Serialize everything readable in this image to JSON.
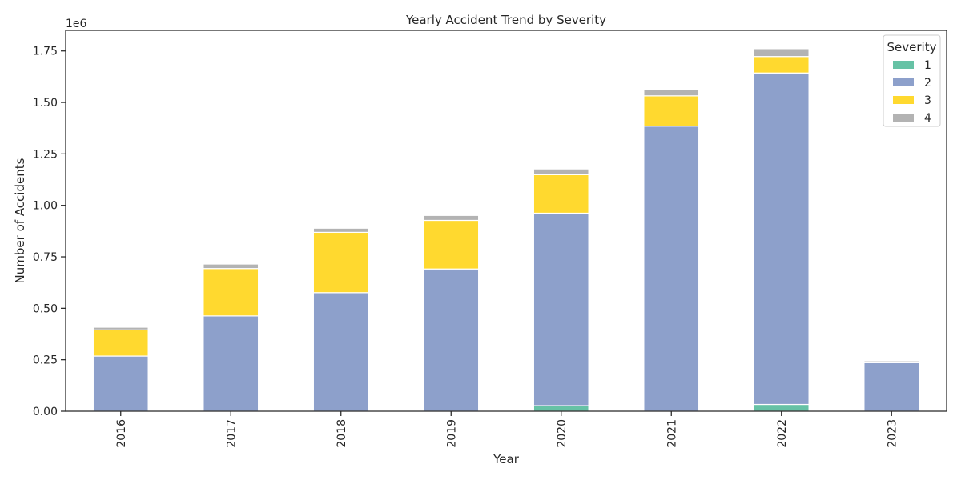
{
  "chart_data": {
    "type": "bar",
    "stacked": true,
    "title": "Yearly Accident Trend by Severity",
    "xlabel": "Year",
    "ylabel": "Number of Accidents",
    "y_offset_label": "1e6",
    "y_scale": 1000000,
    "ylim": [
      0,
      1850000
    ],
    "yticks": [
      0,
      250000,
      500000,
      750000,
      1000000,
      1250000,
      1500000,
      1750000
    ],
    "ytick_labels": [
      "0.00",
      "0.25",
      "0.50",
      "0.75",
      "1.00",
      "1.25",
      "1.50",
      "1.75"
    ],
    "categories": [
      "2016",
      "2017",
      "2018",
      "2019",
      "2020",
      "2021",
      "2022",
      "2023"
    ],
    "grid": false,
    "legend": {
      "title": "Severity",
      "placement": "top-right"
    },
    "series": [
      {
        "name": "1",
        "color": "#66c2a5",
        "values": [
          0,
          0,
          0,
          0,
          27000,
          0,
          33000,
          0
        ]
      },
      {
        "name": "2",
        "color": "#8da0cb",
        "values": [
          268000,
          463000,
          576000,
          691000,
          935000,
          1385000,
          1610000,
          236000
        ]
      },
      {
        "name": "3",
        "color": "#ffd92f",
        "values": [
          127000,
          230000,
          293000,
          236000,
          187000,
          147000,
          80000,
          4000
        ]
      },
      {
        "name": "4",
        "color": "#b3b3b3",
        "values": [
          13000,
          22000,
          20000,
          24000,
          28000,
          31000,
          38000,
          6000
        ]
      }
    ]
  }
}
